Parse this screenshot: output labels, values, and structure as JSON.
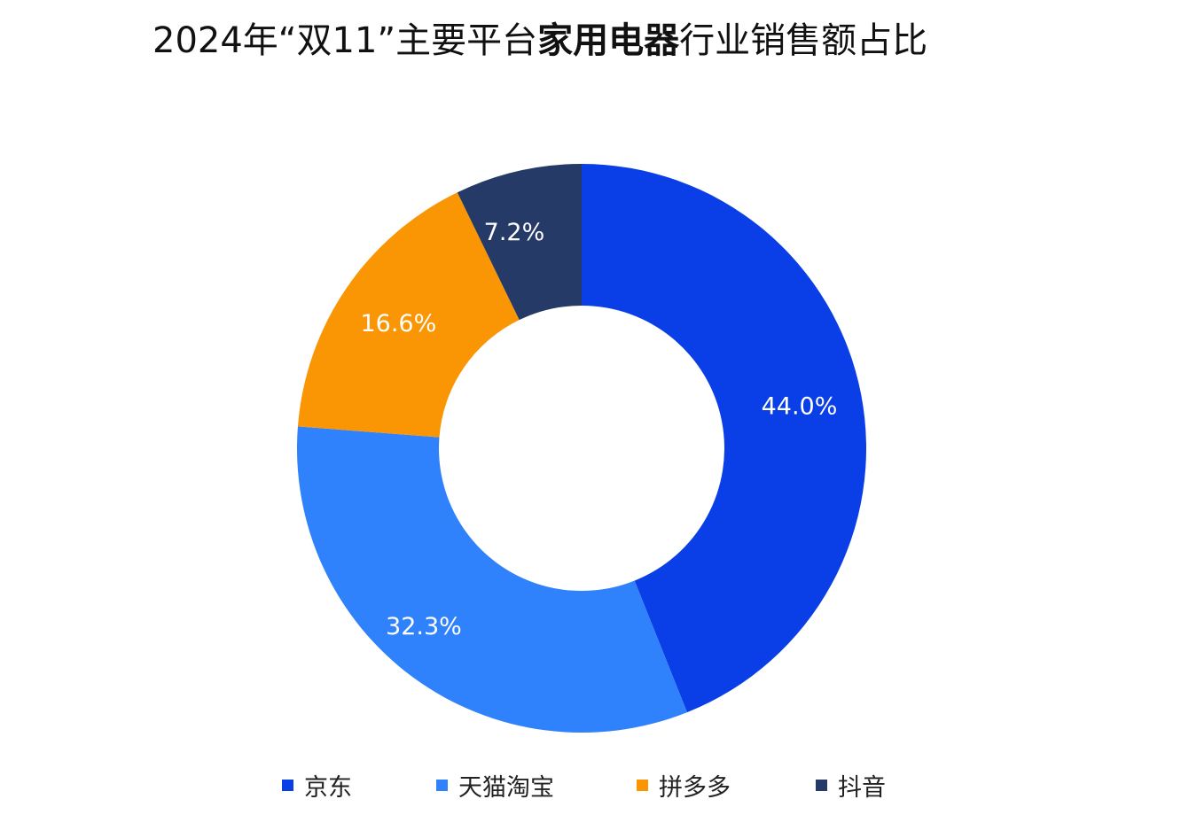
{
  "title": {
    "prefix": "2024年“双11”主要平台",
    "emphasis": "家用电器",
    "suffix": "行业销售额占比"
  },
  "chart_data": {
    "type": "pie",
    "variant": "donut",
    "title": "2024年“双11”主要平台家用电器行业销售额占比",
    "unit": "%",
    "legend_position": "bottom",
    "slices": [
      {
        "name": "京东",
        "value": 44.0,
        "label": "44.0%",
        "color": "#0a3fe8"
      },
      {
        "name": "天猫淘宝",
        "value": 32.3,
        "label": "32.3%",
        "color": "#2f82fb"
      },
      {
        "name": "拼多多",
        "value": 16.6,
        "label": "16.6%",
        "color": "#fa9604"
      },
      {
        "name": "抖音",
        "value": 7.2,
        "label": "7.2%",
        "color": "#263a68"
      }
    ]
  }
}
